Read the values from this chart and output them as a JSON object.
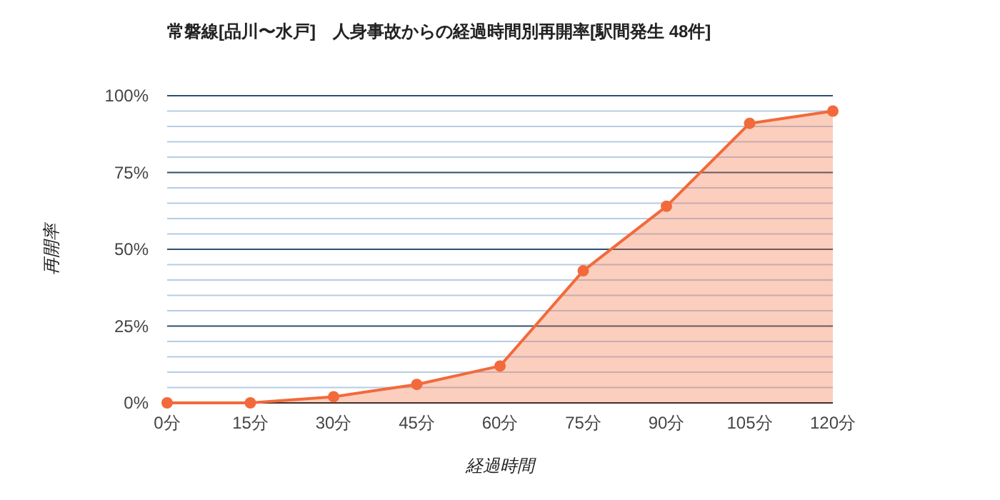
{
  "chart_data": {
    "type": "area",
    "title": "常磐線[品川〜水戸]　人身事故からの経過時間別再開率[駅間発生 48件]",
    "xlabel": "経過時間",
    "ylabel": "再開率",
    "categories": [
      "0分",
      "15分",
      "30分",
      "45分",
      "60分",
      "75分",
      "90分",
      "105分",
      "120分"
    ],
    "series": [
      {
        "color": "#f26a3b",
        "values": [
          0,
          0,
          2,
          6,
          12,
          43,
          64,
          91,
          95
        ]
      }
    ],
    "ylim": [
      0,
      100
    ],
    "yticks": [
      {
        "value": 0,
        "label": "0%"
      },
      {
        "value": 5,
        "label": null
      },
      {
        "value": 10,
        "label": null
      },
      {
        "value": 15,
        "label": null
      },
      {
        "value": 20,
        "label": null
      },
      {
        "value": 25,
        "label": "25%"
      },
      {
        "value": 30,
        "label": null
      },
      {
        "value": 35,
        "label": null
      },
      {
        "value": 40,
        "label": null
      },
      {
        "value": 45,
        "label": null
      },
      {
        "value": 50,
        "label": "50%"
      },
      {
        "value": 55,
        "label": null
      },
      {
        "value": 60,
        "label": null
      },
      {
        "value": 65,
        "label": null
      },
      {
        "value": 70,
        "label": null
      },
      {
        "value": 75,
        "label": "75%"
      },
      {
        "value": 80,
        "label": null
      },
      {
        "value": 85,
        "label": null
      },
      {
        "value": 90,
        "label": null
      },
      {
        "value": 95,
        "label": null
      },
      {
        "value": 100,
        "label": "100%"
      }
    ],
    "grid": "y",
    "marker": "circle",
    "line_style": "solid"
  }
}
